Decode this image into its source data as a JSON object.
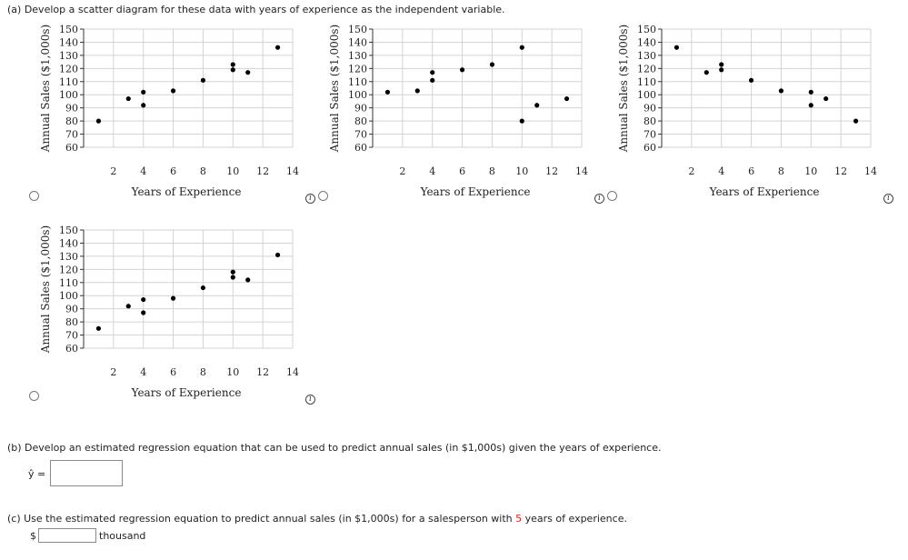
{
  "part_a": {
    "prompt": "(a)  Develop a scatter diagram for these data with years of experience as the independent variable."
  },
  "part_b": {
    "prompt": "(b)  Develop an estimated regression equation that can be used to predict annual sales (in $1,000s) given the years of experience.",
    "yhat_label": "ŷ =",
    "yhat_value": ""
  },
  "part_c": {
    "prompt_before": "(c)  Use the estimated regression equation to predict annual sales (in $1,000s) for a salesperson with ",
    "highlight": "5",
    "prompt_after": " years of experience.",
    "currency": "$",
    "value": "",
    "unit": "thousand"
  },
  "info_glyph": "i",
  "colors": {
    "highlight": "#e02020",
    "grid": "#d3d3d3",
    "point": "#000000"
  },
  "chart_data": [
    {
      "type": "scatter",
      "option": 1,
      "xlabel": "Years of Experience",
      "ylabel": "Annual Sales ($1,000s)",
      "xlim": [
        0,
        14
      ],
      "ylim": [
        60,
        150
      ],
      "xticks": [
        2,
        4,
        6,
        8,
        10,
        12,
        14
      ],
      "yticks": [
        60,
        70,
        80,
        90,
        100,
        110,
        120,
        130,
        140,
        150
      ],
      "grid": true,
      "points": [
        {
          "x": 1,
          "y": 80
        },
        {
          "x": 3,
          "y": 97
        },
        {
          "x": 4,
          "y": 102
        },
        {
          "x": 4,
          "y": 92
        },
        {
          "x": 6,
          "y": 103
        },
        {
          "x": 8,
          "y": 111
        },
        {
          "x": 10,
          "y": 123
        },
        {
          "x": 10,
          "y": 119
        },
        {
          "x": 11,
          "y": 117
        },
        {
          "x": 13,
          "y": 136
        }
      ]
    },
    {
      "type": "scatter",
      "option": 2,
      "xlabel": "Years of Experience",
      "ylabel": "Annual Sales ($1,000s)",
      "xlim": [
        0,
        14
      ],
      "ylim": [
        60,
        150
      ],
      "xticks": [
        2,
        4,
        6,
        8,
        10,
        12,
        14
      ],
      "yticks": [
        60,
        70,
        80,
        90,
        100,
        110,
        120,
        130,
        140,
        150
      ],
      "grid": true,
      "points": [
        {
          "x": 1,
          "y": 102
        },
        {
          "x": 3,
          "y": 103
        },
        {
          "x": 4,
          "y": 117
        },
        {
          "x": 4,
          "y": 111
        },
        {
          "x": 6,
          "y": 119
        },
        {
          "x": 8,
          "y": 123
        },
        {
          "x": 10,
          "y": 136
        },
        {
          "x": 10,
          "y": 80
        },
        {
          "x": 11,
          "y": 92
        },
        {
          "x": 13,
          "y": 97
        }
      ]
    },
    {
      "type": "scatter",
      "option": 3,
      "xlabel": "Years of Experience",
      "ylabel": "Annual Sales ($1,000s)",
      "xlim": [
        0,
        14
      ],
      "ylim": [
        60,
        150
      ],
      "xticks": [
        2,
        4,
        6,
        8,
        10,
        12,
        14
      ],
      "yticks": [
        60,
        70,
        80,
        90,
        100,
        110,
        120,
        130,
        140,
        150
      ],
      "grid": true,
      "points": [
        {
          "x": 1,
          "y": 136
        },
        {
          "x": 3,
          "y": 117
        },
        {
          "x": 4,
          "y": 123
        },
        {
          "x": 4,
          "y": 119
        },
        {
          "x": 6,
          "y": 111
        },
        {
          "x": 8,
          "y": 103
        },
        {
          "x": 10,
          "y": 102
        },
        {
          "x": 10,
          "y": 92
        },
        {
          "x": 11,
          "y": 97
        },
        {
          "x": 13,
          "y": 80
        }
      ]
    },
    {
      "type": "scatter",
      "option": 4,
      "xlabel": "Years of Experience",
      "ylabel": "Annual Sales ($1,000s)",
      "xlim": [
        0,
        14
      ],
      "ylim": [
        60,
        150
      ],
      "xticks": [
        2,
        4,
        6,
        8,
        10,
        12,
        14
      ],
      "yticks": [
        60,
        70,
        80,
        90,
        100,
        110,
        120,
        130,
        140,
        150
      ],
      "grid": true,
      "points": [
        {
          "x": 1,
          "y": 75
        },
        {
          "x": 3,
          "y": 92
        },
        {
          "x": 4,
          "y": 97
        },
        {
          "x": 4,
          "y": 87
        },
        {
          "x": 6,
          "y": 98
        },
        {
          "x": 8,
          "y": 106
        },
        {
          "x": 10,
          "y": 118
        },
        {
          "x": 10,
          "y": 114
        },
        {
          "x": 11,
          "y": 112
        },
        {
          "x": 13,
          "y": 131
        }
      ]
    }
  ]
}
